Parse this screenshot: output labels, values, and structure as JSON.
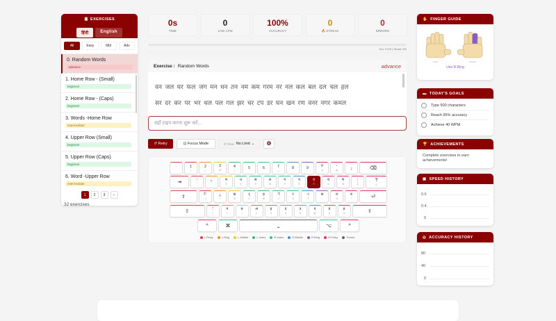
{
  "sidebar": {
    "title": "EXERCISES",
    "langs": [
      "हिंदी",
      "English"
    ],
    "filters": [
      "All",
      "Easy",
      "Mid",
      "Adv"
    ],
    "items": [
      {
        "title": "0. Random Words",
        "level": "advance"
      },
      {
        "title": "1. Home Row - (Small)",
        "level": "beginner"
      },
      {
        "title": "2. Home Row - (Caps)",
        "level": "beginner"
      },
      {
        "title": "3. Words -Home Row",
        "level": "intermediate"
      },
      {
        "title": "4. Upper Row (Small)",
        "level": "beginner"
      },
      {
        "title": "5. Upper Row (Caps)",
        "level": "beginner"
      },
      {
        "title": "6. Word -Upper Row",
        "level": "intermediate"
      }
    ],
    "pages": [
      "1",
      "2",
      "3",
      "›"
    ],
    "count": "32 exercises"
  },
  "stats": [
    {
      "value": "0s",
      "label": "TIME",
      "color": "#8b0000"
    },
    {
      "value": "0",
      "label": "LIVE CPM",
      "color": "#222"
    },
    {
      "value": "100%",
      "label": "ACCURACY",
      "color": "#8b0000"
    },
    {
      "value": "0",
      "label": "🔥 STREAK",
      "color": "#d08a10"
    },
    {
      "value": "0",
      "label": "ERRORS",
      "color": "#c0202a"
    }
  ],
  "progress": {
    "text": "You: 0.0% | Ghost: 0%",
    "you": 0,
    "ghost": 0
  },
  "exercise": {
    "label": "Exercise :",
    "name": "Random Words",
    "level": "advance",
    "lines": [
      "वन जल घर फल जग मन धन तन नम कम गरम नर नल कल बल दल चल हल",
      "सर दर कर पर भर थल पल गल झर चर टप डर घन खन रण वनर नगर कमल"
    ]
  },
  "input": {
    "placeholder": "यहाँ टाइप करना शुरू करें..."
  },
  "controls": {
    "retry": "↺ Retry",
    "focus": "⊡ Focus Mode",
    "timer_label": "⏱ Time:",
    "timer_value": "No Limit ⌄",
    "sound": "🔇"
  },
  "keyboard": {
    "active": "व",
    "rows": [
      [
        [
          "`",
          ""
        ],
        [
          "1",
          "!"
        ],
        [
          "2",
          "/"
        ],
        [
          "3",
          "ॐ"
        ],
        [
          "4",
          "+"
        ],
        [
          "5",
          ""
        ],
        [
          "6",
          ""
        ],
        [
          "7",
          "—"
        ],
        [
          "8",
          ""
        ],
        [
          "9",
          ""
        ],
        [
          "0",
          "ड़"
        ],
        [
          "-",
          "ऋ"
        ],
        [
          "ृ",
          ""
        ],
        [
          "⌫",
          ""
        ]
      ],
      [
        [
          "⇥",
          ""
        ],
        [
          "ं",
          "ॅ"
        ],
        [
          "ॆ",
          ""
        ],
        [
          "म",
          "ण"
        ],
        [
          "त",
          "ठ"
        ],
        [
          "ज",
          "ञ"
        ],
        [
          "ल",
          "ख"
        ],
        [
          "न",
          "ग"
        ],
        [
          "प",
          "फ"
        ],
        [
          "व",
          "ॐ"
        ],
        [
          "च",
          "ध"
        ],
        [
          "ष",
          "क्ष"
        ],
        [
          ";",
          "ढ़"
        ],
        [
          "?",
          "ए"
        ]
      ],
      [
        [
          "⇪",
          ""
        ],
        [
          "ि",
          "ा"
        ],
        [
          "ु",
          "े"
        ],
        [
          "क",
          "श"
        ],
        [
          "र्",
          "र"
        ],
        [
          "ह",
          "द्य"
        ],
        [
          "ी",
          "ा"
        ],
        [
          "र",
          "म"
        ],
        [
          "ा",
          "ॉ"
        ],
        [
          "स",
          "े"
        ],
        [
          "य",
          "भ"
        ],
        [
          "ड",
          "ै"
        ],
        [
          "⏎",
          ""
        ]
      ],
      [
        [
          "⇧",
          ""
        ],
        [
          "ॅ",
          "ॆ"
        ],
        [
          "ग",
          "ै"
        ],
        [
          "ब",
          "े"
        ],
        [
          "अ",
          "ट"
        ],
        [
          "इ",
          "ठ"
        ],
        [
          "द",
          "ड"
        ],
        [
          "उ",
          "ढ"
        ],
        [
          "ए",
          "झ"
        ],
        [
          "ड",
          "श"
        ],
        [
          "ड़",
          "ढ"
        ],
        [
          "⇧",
          ""
        ]
      ],
      [
        [
          "^",
          ""
        ],
        [
          "⌘",
          ""
        ],
        [
          "⎵",
          ""
        ],
        [
          "⌥",
          ""
        ],
        [
          "^",
          ""
        ]
      ]
    ],
    "fingers": [
      [
        "lp",
        "lp",
        "lr",
        "lm",
        "li",
        "li",
        "ri",
        "ri",
        "rm",
        "rr",
        "rp",
        "rp",
        "rp",
        "rp"
      ],
      [
        "lp",
        "lp",
        "lr",
        "lm",
        "li",
        "li",
        "ri",
        "ri",
        "rm",
        "rr",
        "rp",
        "rp",
        "rp",
        "rp"
      ],
      [
        "lp",
        "lp",
        "lr",
        "lm",
        "li",
        "li",
        "ri",
        "ri",
        "rm",
        "rr",
        "rp",
        "rp",
        "rp"
      ],
      [
        "lp",
        "lp",
        "lr",
        "lm",
        "li",
        "li",
        "ri",
        "ri",
        "rm",
        "rr",
        "rp",
        "rp"
      ],
      [
        "lp",
        "li",
        "th",
        "ri",
        "rp"
      ]
    ]
  },
  "legend": [
    {
      "key": "lp",
      "label": "L.Pinky",
      "color": "#e04050"
    },
    {
      "key": "lr",
      "label": "L.Ring",
      "color": "#e8902a"
    },
    {
      "key": "lm",
      "label": "L.Middle",
      "color": "#f0c830"
    },
    {
      "key": "li",
      "label": "L.Index",
      "color": "#3cb878"
    },
    {
      "key": "ri",
      "label": "R.Index",
      "color": "#40c090"
    },
    {
      "key": "rm",
      "label": "R.Middle",
      "color": "#4a90d0"
    },
    {
      "key": "rr",
      "label": "R.Ring",
      "color": "#8a5cc8"
    },
    {
      "key": "rp",
      "label": "R.Pinky",
      "color": "#e0306a"
    },
    {
      "key": "th",
      "label": "Thumb",
      "color": "#666666"
    }
  ],
  "finger_guide": {
    "title": "FINGER GUIDE",
    "left": "LEFT",
    "right": "RIGHT",
    "hint": "Use R.Ring",
    "highlight": "#8a5cc8"
  },
  "goals": {
    "title": "TODAY'S GOALS",
    "items": [
      "Type 500 characters",
      "Reach 95% accuracy",
      "Achieve 40 WPM"
    ]
  },
  "achievements": {
    "title": "ACHIEVEMENTS",
    "text": "Complete exercises to earn achievements!"
  },
  "speed_history": {
    "title": "SPEED HISTORY",
    "ticks": [
      "0.6",
      "0.4",
      "0"
    ]
  },
  "accuracy_history": {
    "title": "ACCURACY HISTORY",
    "ticks": [
      "80",
      "40",
      "0"
    ]
  }
}
